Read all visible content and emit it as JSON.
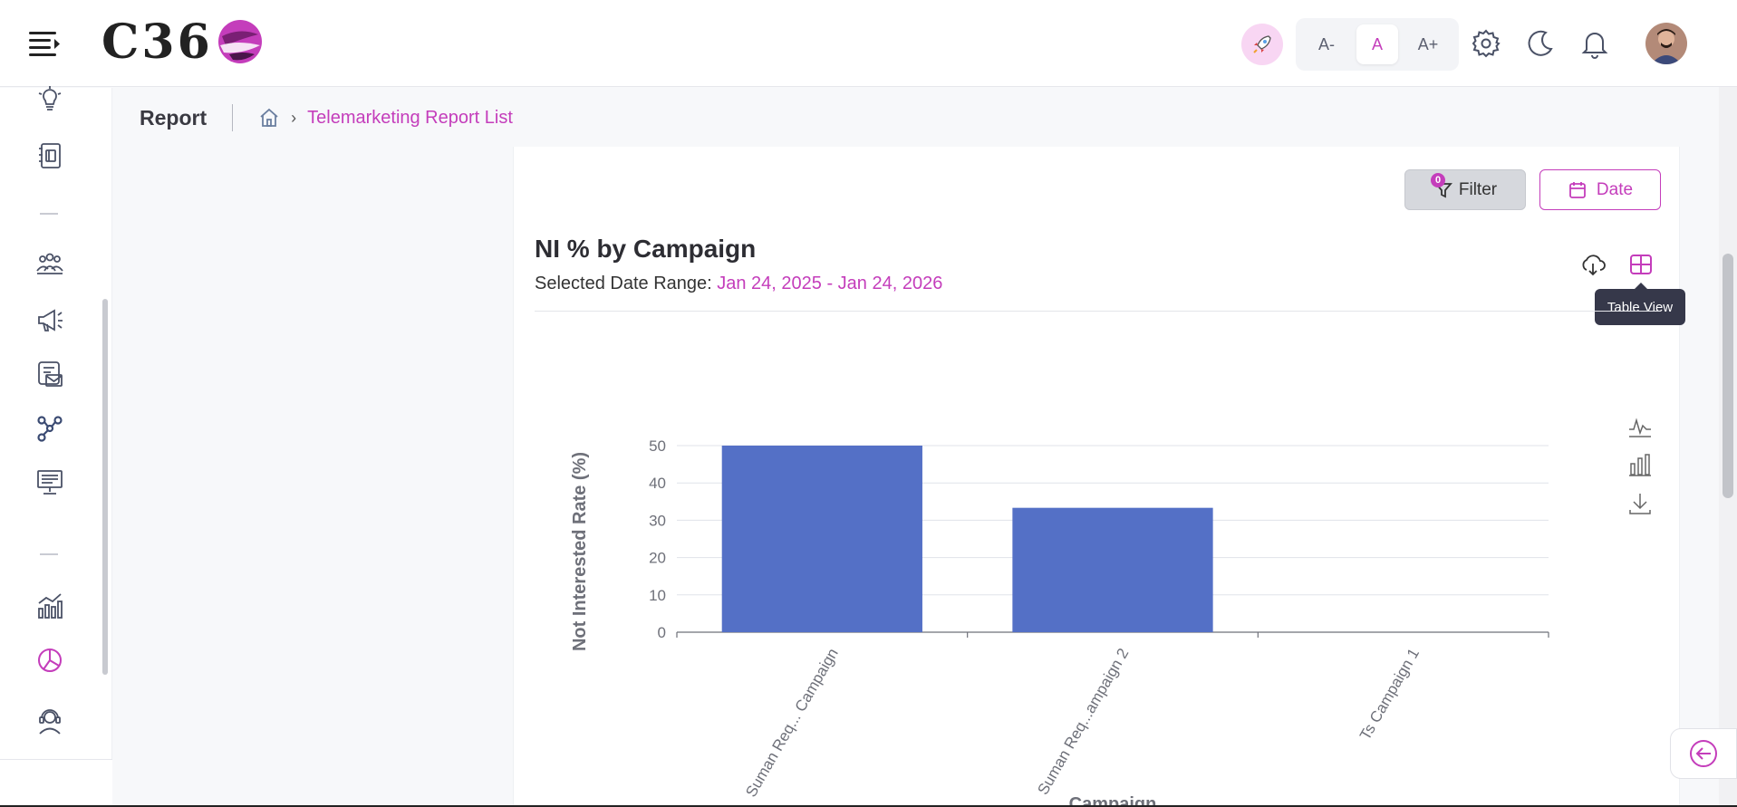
{
  "header": {
    "logo_text": "C36",
    "font_controls": {
      "decrease": "A-",
      "normal": "A",
      "increase": "A+"
    }
  },
  "breadcrumb": {
    "title": "Report",
    "current": "Telemarketing Report List"
  },
  "toolbar": {
    "filter_label": "Filter",
    "filter_count": "0",
    "date_label": "Date"
  },
  "report": {
    "title": "NI % by Campaign",
    "date_range_label": "Selected Date Range:",
    "date_range_value": "Jan 24, 2025 - Jan 24, 2026",
    "tooltip": "Table View"
  },
  "colors": {
    "accent": "#c43dbb",
    "bar": "#5470c6"
  },
  "chart_data": {
    "type": "bar",
    "categories": [
      "Suman Req... Campaign",
      "Suman Req...ampaign 2",
      "Ts Campaign 1"
    ],
    "values": [
      50,
      33.33,
      0
    ],
    "title": "",
    "xlabel": "Campaign",
    "ylabel": "Not Interested Rate (%)",
    "ylim": [
      0,
      50
    ],
    "yticks": [
      0,
      10,
      20,
      30,
      40,
      50
    ],
    "grid": true
  }
}
